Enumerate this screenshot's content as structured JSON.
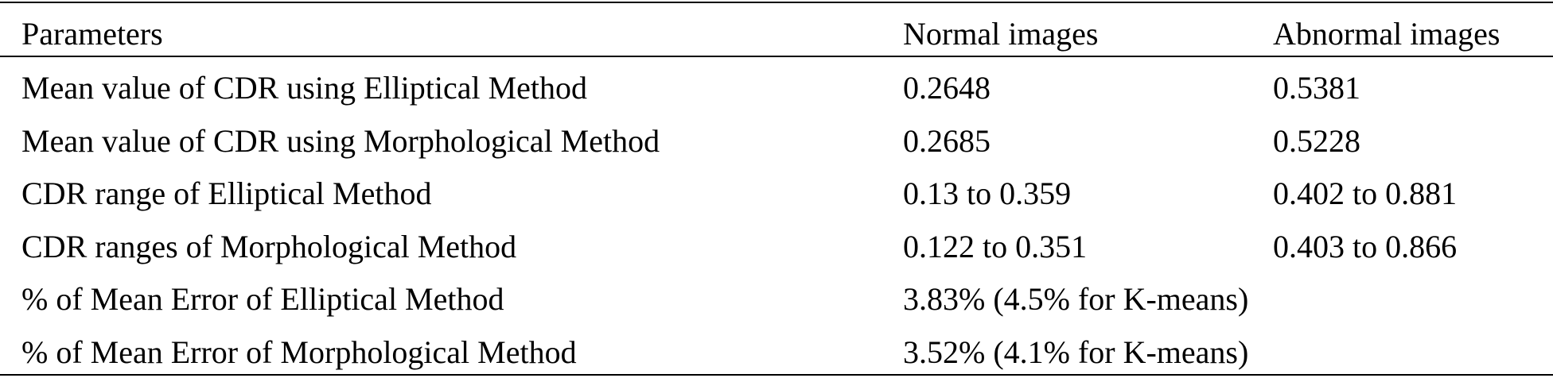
{
  "table": {
    "header": [
      "Parameters",
      "Normal images",
      "Abnormal images"
    ],
    "rows": [
      [
        "Mean value of CDR using Elliptical Method",
        "0.2648",
        "0.5381"
      ],
      [
        "Mean value of CDR using Morphological Method",
        "0.2685",
        "0.5228"
      ],
      [
        "CDR range of Elliptical Method",
        "0.13 to 0.359",
        "0.402 to 0.881"
      ],
      [
        "CDR ranges of Morphological Method",
        "0.122 to 0.351",
        "0.403 to 0.866"
      ],
      [
        "% of Mean Error of Elliptical Method",
        "3.83% (4.5% for K-means)"
      ],
      [
        "% of Mean Error of Morphological Method",
        "3.52% (4.1% for K-means)"
      ]
    ]
  }
}
